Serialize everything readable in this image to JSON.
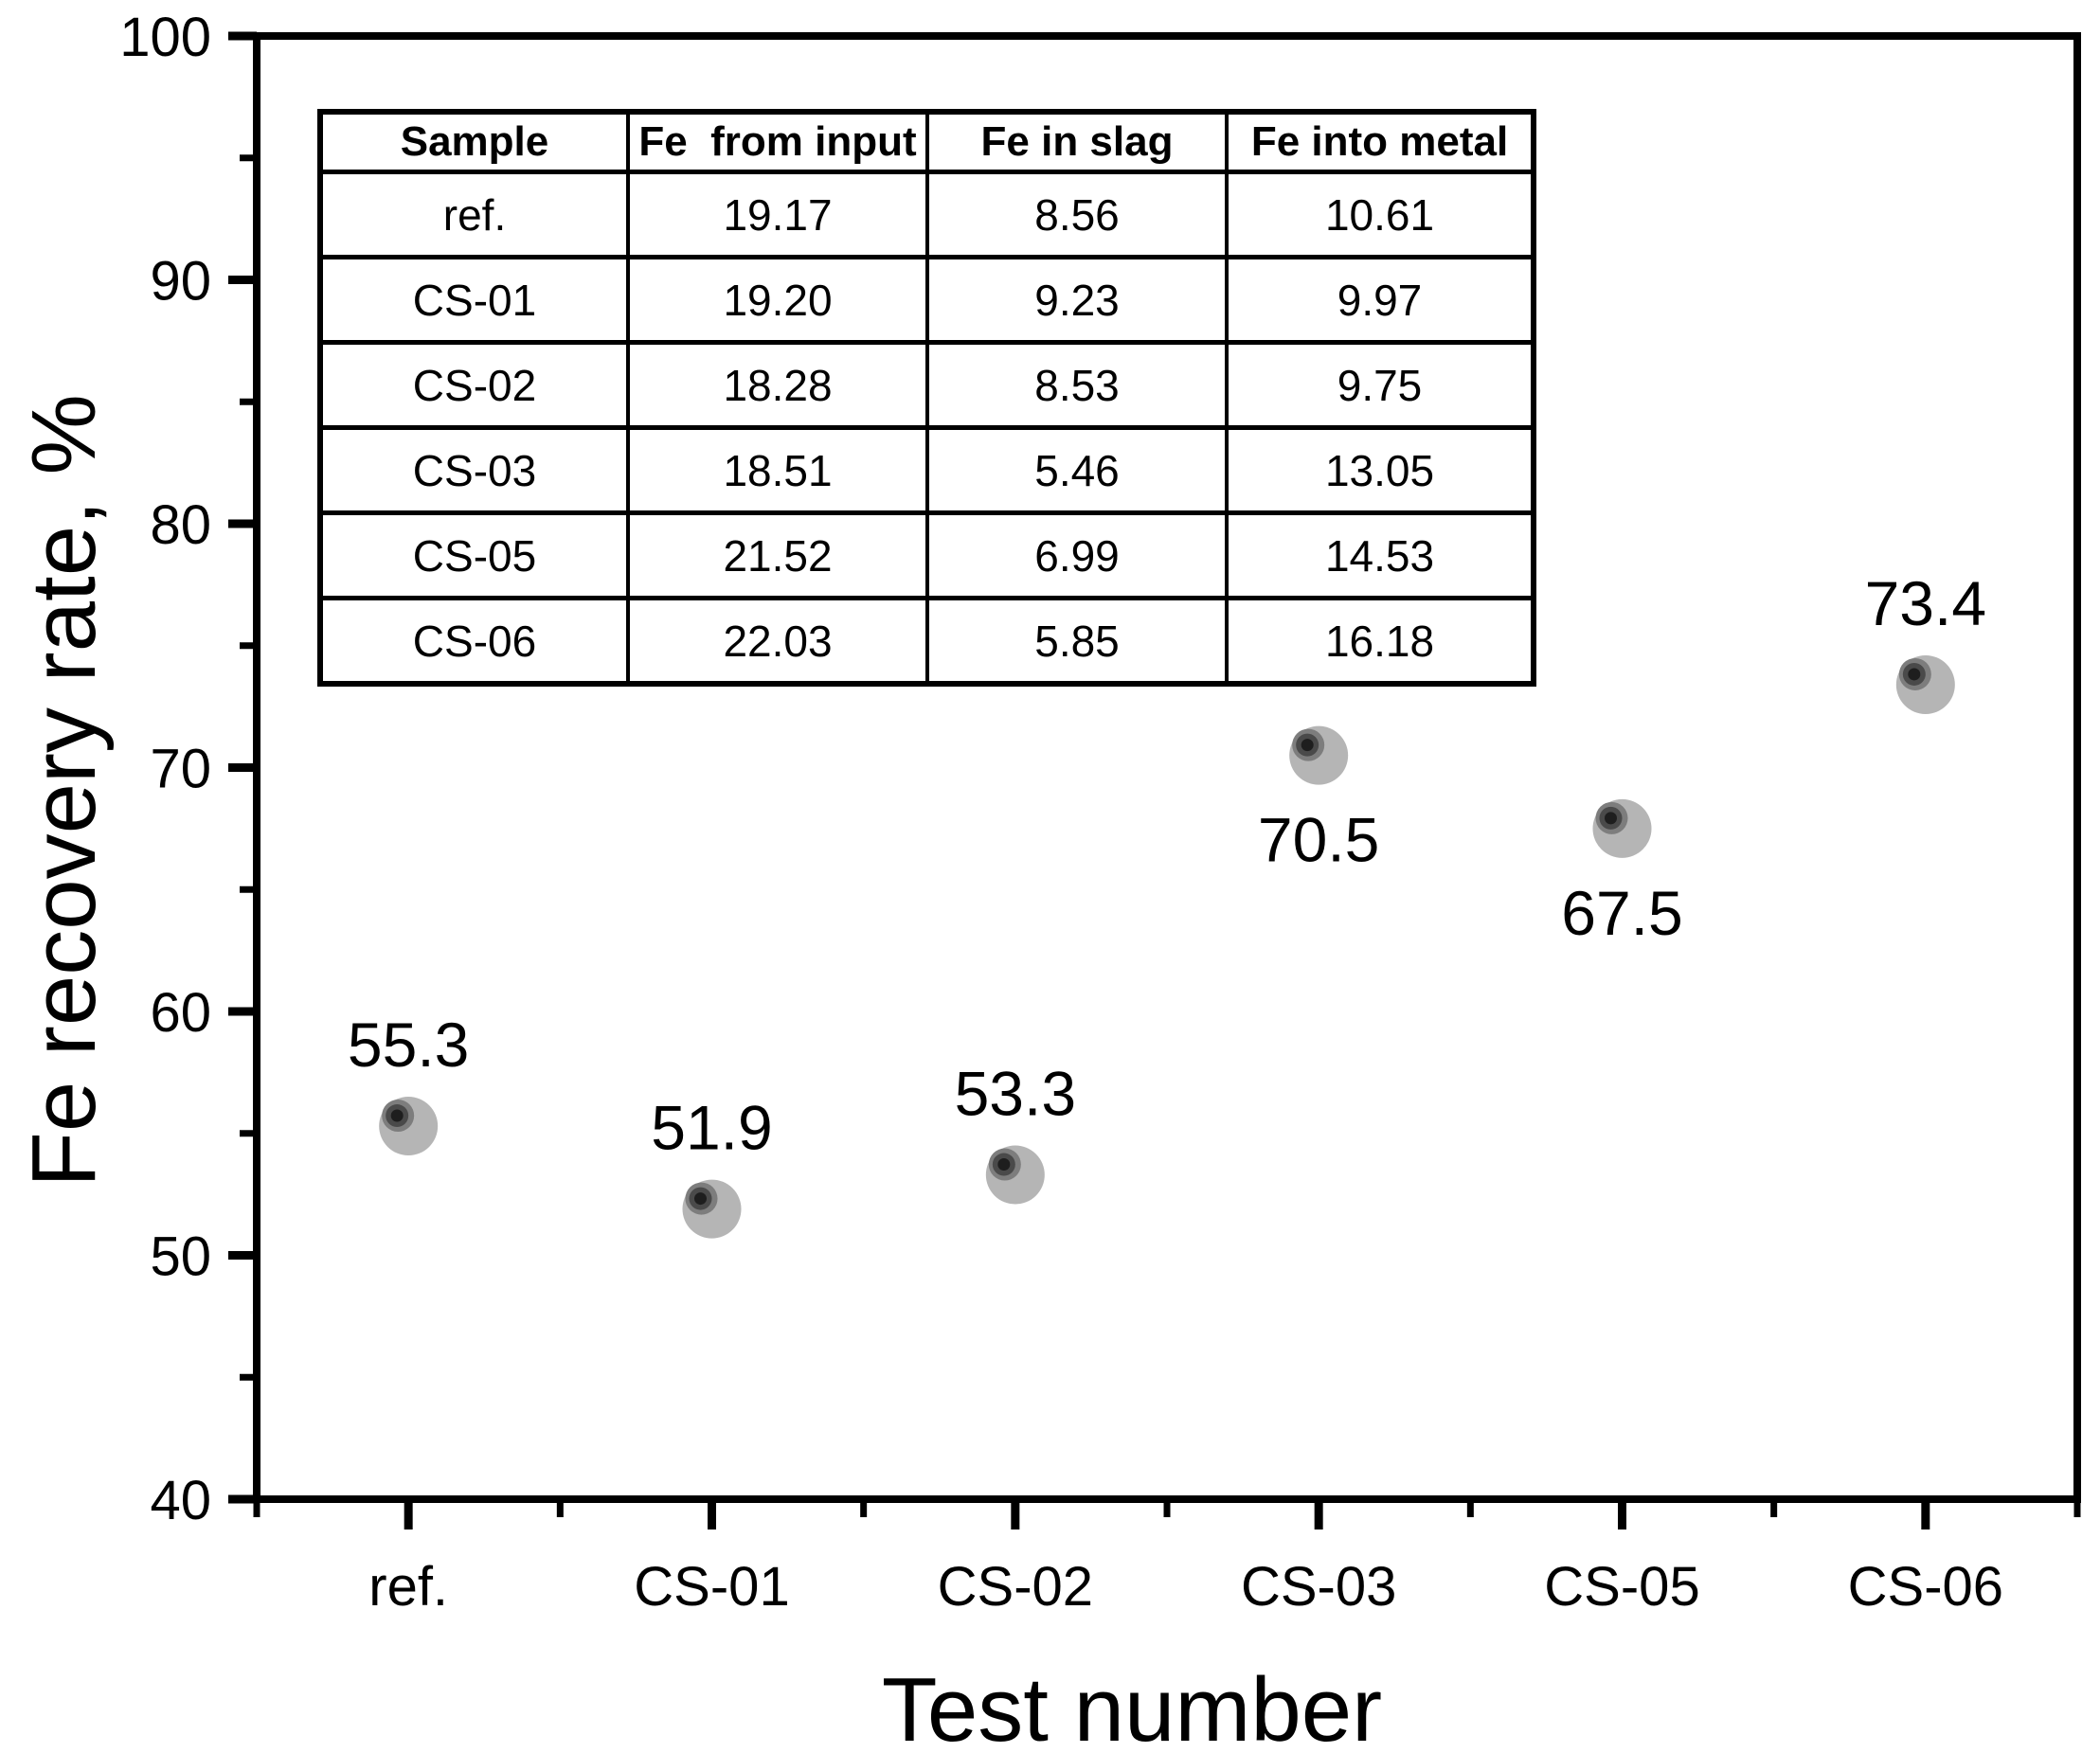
{
  "chart_data": {
    "type": "scatter",
    "title": "",
    "xlabel": "Test number",
    "ylabel": "Fe recovery rate, %",
    "categories": [
      "ref.",
      "CS-01",
      "CS-02",
      "CS-03",
      "CS-05",
      "CS-06"
    ],
    "values": [
      55.3,
      51.9,
      53.3,
      70.5,
      67.5,
      73.4
    ],
    "point_labels": [
      "55.3",
      "51.9",
      "53.3",
      "70.5",
      "67.5",
      "73.4"
    ],
    "label_placement": [
      "above",
      "above",
      "above",
      "below",
      "below",
      "above"
    ],
    "ylim": [
      40,
      100
    ],
    "y_major_step": 10,
    "y_minor_step": 5,
    "y_major_ticks": [
      "40",
      "50",
      "60",
      "70",
      "80",
      "90",
      "100"
    ],
    "grid": false,
    "legend": false,
    "frame": true,
    "marker": {
      "outer_color": "#b5b5b5",
      "mid_color": "#7d7d7d",
      "ring_color": "#4a4a4a",
      "core_color": "#1e1e1e"
    },
    "axis_color": "#000000",
    "inset_table": {
      "headers": [
        "Sample",
        "Fe  from input",
        "Fe in slag",
        "Fe into metal"
      ],
      "rows": [
        [
          "ref.",
          "19.17",
          "8.56",
          "10.61"
        ],
        [
          "CS-01",
          "19.20",
          "9.23",
          "9.97"
        ],
        [
          "CS-02",
          "18.28",
          "8.53",
          "9.75"
        ],
        [
          "CS-03",
          "18.51",
          "5.46",
          "13.05"
        ],
        [
          "CS-05",
          "21.52",
          "6.99",
          "14.53"
        ],
        [
          "CS-06",
          "22.03",
          "5.85",
          "16.18"
        ]
      ]
    }
  }
}
